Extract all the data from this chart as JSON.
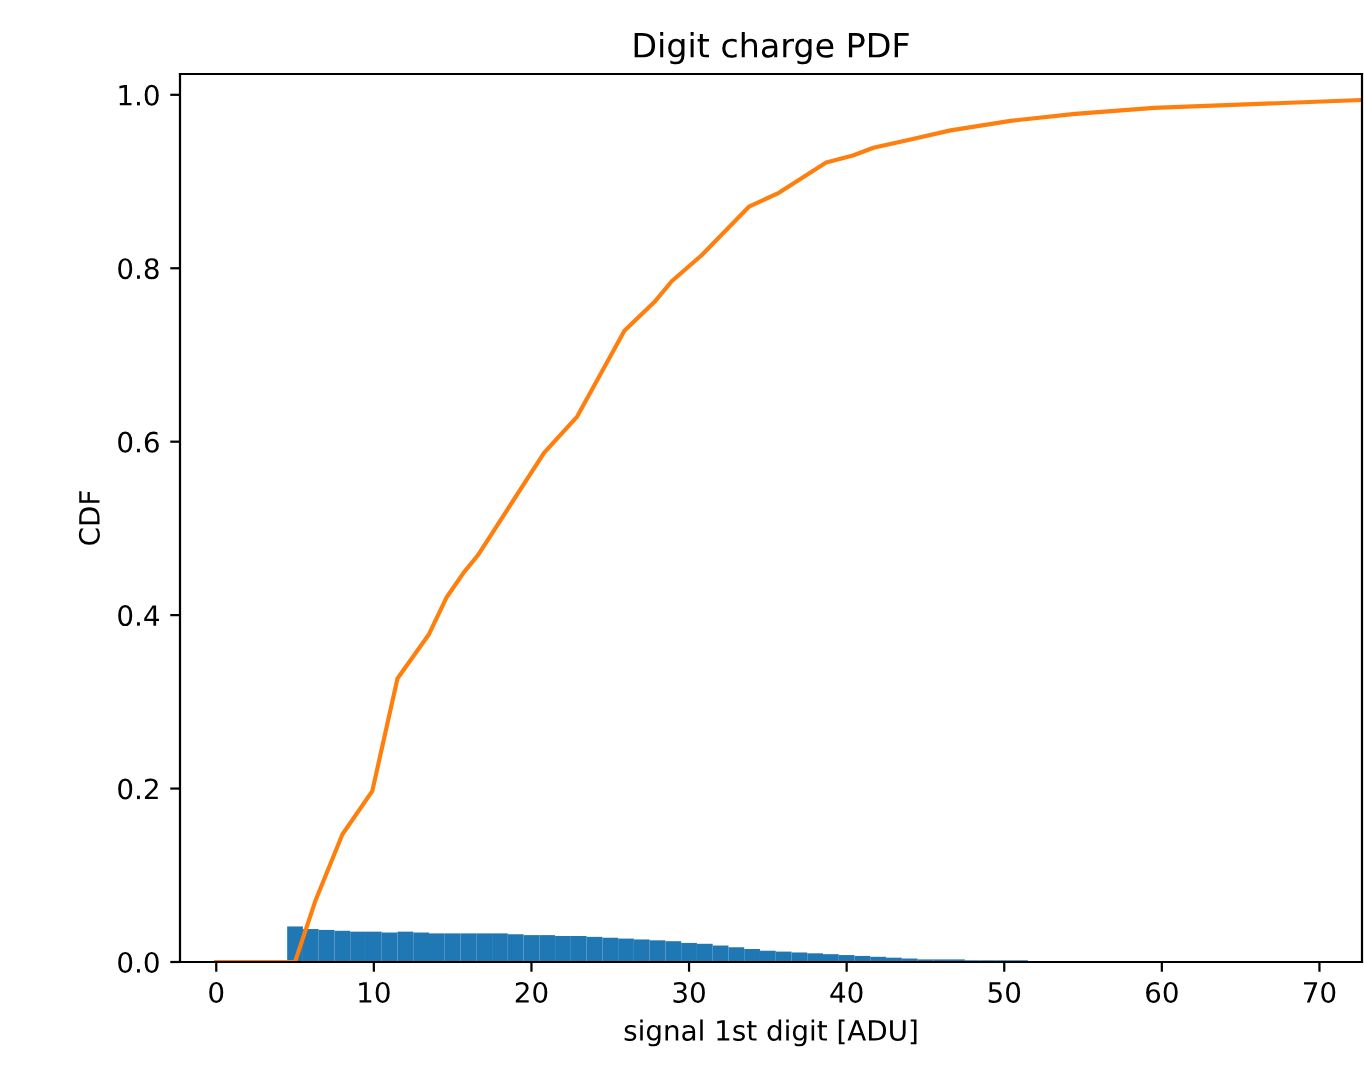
{
  "chart_data": {
    "type": "histogram",
    "title": "Digit charge PDF",
    "xlabel": "signal 1st digit [ADU]",
    "ylabel": "CDF",
    "xlim": [
      -2.3,
      72.7
    ],
    "xticks": [
      0,
      10,
      20,
      30,
      40,
      50,
      60,
      70
    ],
    "ylim": [
      0,
      1.024
    ],
    "yticks": [
      {
        "value": 0,
        "label": "0.0"
      },
      {
        "value": 0.2,
        "label": "0.2"
      },
      {
        "value": 0.4,
        "label": "0.4"
      },
      {
        "value": 0.6,
        "label": "0.6"
      },
      {
        "value": 0.8,
        "label": "0.8"
      },
      {
        "value": 1.0,
        "label": "1.0"
      }
    ],
    "grid": false,
    "legend": false,
    "series": [
      {
        "color": "#1f77b4",
        "bins": [
          4.5,
          5.5,
          6.5,
          7.5,
          8.5,
          9.5,
          10.5,
          11.5,
          12.5,
          13.5,
          14.5,
          15.5,
          16.5,
          17.5,
          18.5,
          19.5,
          20.5,
          21.5,
          22.5,
          23.5,
          24.5,
          25.5,
          26.5,
          27.5,
          28.5,
          29.5,
          30.5,
          31.5,
          32.5,
          33.5,
          34.5,
          35.5,
          36.5,
          37.5,
          38.5,
          39.5,
          40.5,
          41.5,
          42.5,
          43.5,
          44.5,
          45.5,
          46.5,
          47.5,
          48.5,
          49.5,
          50.5,
          51.5
        ],
        "values": [
          0.041,
          0.038,
          0.037,
          0.036,
          0.035,
          0.035,
          0.034,
          0.035,
          0.034,
          0.033,
          0.033,
          0.033,
          0.033,
          0.033,
          0.032,
          0.031,
          0.031,
          0.03,
          0.03,
          0.029,
          0.028,
          0.027,
          0.026,
          0.025,
          0.024,
          0.022,
          0.021,
          0.019,
          0.017,
          0.015,
          0.013,
          0.012,
          0.011,
          0.01,
          0.009,
          0.008,
          0.007,
          0.006,
          0.005,
          0.004,
          0.003,
          0.003,
          0.003,
          0.002,
          0.002,
          0.002,
          0.002
        ]
      },
      {
        "type": "line",
        "color": "#ff7f0e",
        "x": [
          0,
          5.0,
          6.3,
          8.0,
          9.9,
          11.5,
          13.5,
          14.6,
          15.7,
          16.6,
          20.8,
          22.9,
          25.9,
          27.8,
          28.9,
          30.8,
          33.8,
          35.7,
          38.7,
          40.4,
          41.7,
          43.7,
          46.6,
          50.4,
          54.5,
          59.5,
          72.7
        ],
        "values": [
          0,
          0,
          0.071,
          0.147,
          0.197,
          0.327,
          0.378,
          0.42,
          0.449,
          0.469,
          0.587,
          0.629,
          0.728,
          0.761,
          0.785,
          0.815,
          0.871,
          0.887,
          0.922,
          0.93,
          0.939,
          0.947,
          0.959,
          0.97,
          0.978,
          0.985,
          0.994
        ]
      }
    ]
  }
}
